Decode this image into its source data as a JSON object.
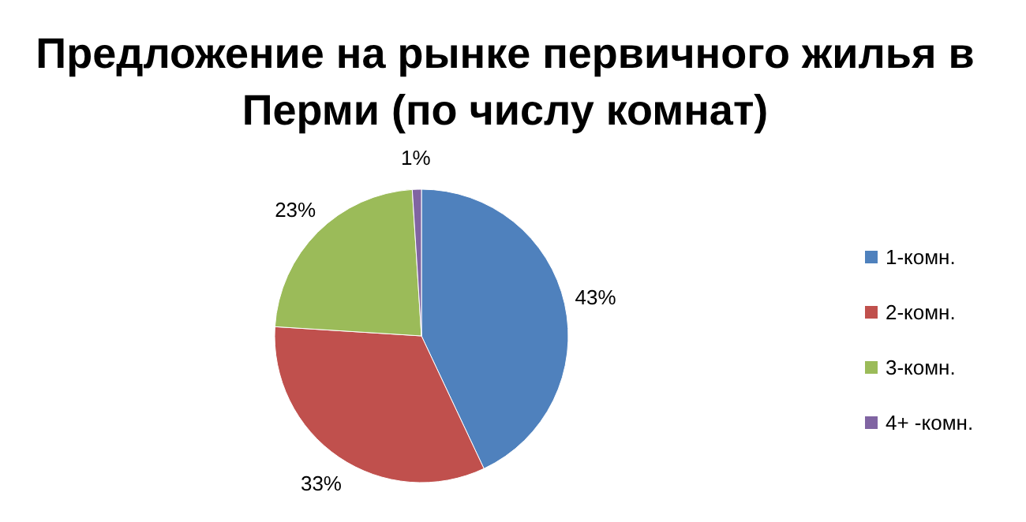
{
  "chart_data": {
    "type": "pie",
    "title": "Предложение на рынке первичного жилья в Перми (по числу комнат)",
    "categories": [
      "1-комн.",
      "2-комн.",
      "3-комн.",
      "4+ -комн."
    ],
    "values": [
      43,
      33,
      23,
      1
    ],
    "colors": [
      "#4f81bd",
      "#c0504d",
      "#9bbb59",
      "#8064a2"
    ],
    "value_labels": [
      "43%",
      "33%",
      "23%",
      "1%"
    ],
    "legend": "right"
  }
}
